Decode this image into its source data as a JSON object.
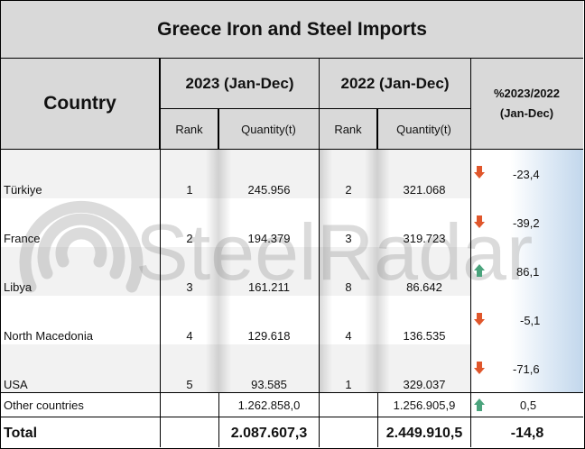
{
  "title": "Greece Iron and Steel Imports",
  "headers": {
    "country": "Country",
    "year_2023": "2023 (Jan-Dec)",
    "year_2022": "2022 (Jan-Dec)",
    "rank": "Rank",
    "quantity": "Quantity(t)",
    "pct_line1": "%2023/2022",
    "pct_line2": "(Jan-Dec)"
  },
  "rows": [
    {
      "country": "Türkiye",
      "rank_2023": "1",
      "qty_2023": "245.956",
      "rank_2022": "2",
      "qty_2022": "321.068",
      "pct": "-23,4",
      "trend": "down"
    },
    {
      "country": "France",
      "rank_2023": "2",
      "qty_2023": "194.379",
      "rank_2022": "3",
      "qty_2022": "319.723",
      "pct": "-39,2",
      "trend": "down"
    },
    {
      "country": "Libya",
      "rank_2023": "3",
      "qty_2023": "161.211",
      "rank_2022": "8",
      "qty_2022": "86.642",
      "pct": "86,1",
      "trend": "up"
    },
    {
      "country": "North Macedonia",
      "rank_2023": "4",
      "qty_2023": "129.618",
      "rank_2022": "4",
      "qty_2022": "136.535",
      "pct": "-5,1",
      "trend": "down"
    },
    {
      "country": "USA",
      "rank_2023": "5",
      "qty_2023": "93.585",
      "rank_2022": "1",
      "qty_2022": "329.037",
      "pct": "-71,6",
      "trend": "down"
    }
  ],
  "other": {
    "country": "Other countries",
    "qty_2023": "1.262.858,0",
    "qty_2022": "1.256.905,9",
    "pct": "0,5",
    "trend": "up"
  },
  "total": {
    "label": "Total",
    "qty_2023": "2.087.607,3",
    "qty_2022": "2.449.910,5",
    "pct": "-14,8"
  },
  "watermark": "SteelRadar",
  "colors": {
    "header_bg": "#d9d9d9",
    "arrow_down": "#e0562b",
    "arrow_up": "#4aa37c"
  }
}
